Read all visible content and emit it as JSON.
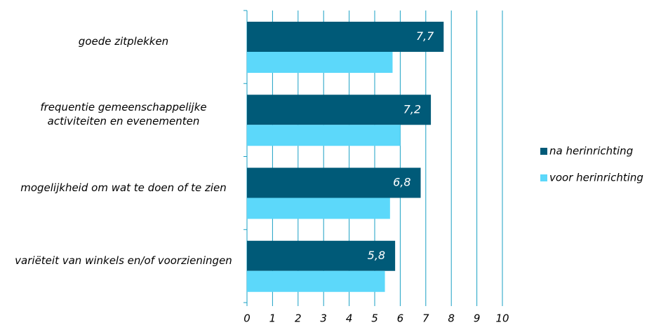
{
  "chart_data": {
    "type": "bar",
    "orientation": "horizontal",
    "categories": [
      "goede zitplekken",
      "frequentie gemeenschappelijke activiteiten en evenementen",
      "mogelijkheid om wat te doen of te zien",
      "variëteit van winkels en/of voorzieningen"
    ],
    "series": [
      {
        "name": "na herinrichting",
        "color": "#005a78",
        "values": [
          7.7,
          7.2,
          6.8,
          5.8
        ],
        "value_labels": [
          "7,7",
          "7,2",
          "6,8",
          "5,8"
        ]
      },
      {
        "name": "voor herinrichting",
        "color": "#5cd8fa",
        "values": [
          5.7,
          6.0,
          5.6,
          5.4
        ]
      }
    ],
    "xlim": [
      0,
      10
    ],
    "xticks": [
      0,
      1,
      2,
      3,
      4,
      5,
      6,
      7,
      8,
      9,
      10
    ],
    "grid": true,
    "legend": "right"
  }
}
